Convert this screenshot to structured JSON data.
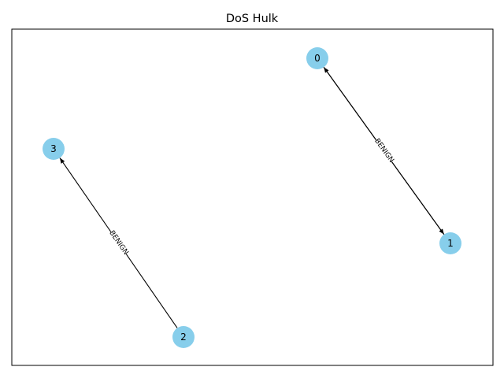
{
  "title": "DoS Hulk",
  "colors": {
    "node_fill": "#87ceeb",
    "edge": "#000000",
    "frame": "#000000",
    "background": "#ffffff"
  },
  "graph": {
    "directed": true,
    "nodes": [
      {
        "id": "0",
        "label": "0"
      },
      {
        "id": "1",
        "label": "1"
      },
      {
        "id": "2",
        "label": "2"
      },
      {
        "id": "3",
        "label": "3"
      }
    ],
    "edges": [
      {
        "source": "0",
        "target": "1",
        "label": "BENIGN"
      },
      {
        "source": "1",
        "target": "0",
        "label": "BENIGN"
      },
      {
        "source": "2",
        "target": "3",
        "label": "BENIGN"
      }
    ]
  }
}
